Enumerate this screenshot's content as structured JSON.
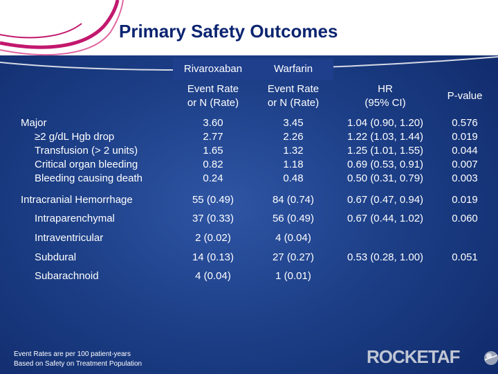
{
  "title": "Primary Safety Outcomes",
  "headers": {
    "rivaroxaban": "Rivaroxaban",
    "warfarin": "Warfarin",
    "event_rate_riv": "Event Rate\nor N (Rate)",
    "event_rate_war": "Event Rate\nor N (Rate)",
    "hr": "HR\n(95% CI)",
    "pvalue": "P-value"
  },
  "major": {
    "label": "Major",
    "sub_labels": "≥2 g/dL Hgb drop\nTransfusion (> 2 units)\nCritical organ bleeding\nBleeding causing death",
    "riv": "3.60\n2.77\n1.65\n0.82\n0.24",
    "war": "3.45\n2.26\n1.32\n1.18\n0.48",
    "hr": "1.04 (0.90, 1.20)\n1.22 (1.03, 1.44)\n1.25 (1.01, 1.55)\n0.69 (0.53, 0.91)\n0.50 (0.31, 0.79)",
    "p": "0.576\n0.019\n0.044\n0.007\n0.003"
  },
  "rows": [
    {
      "label": "Intracranial Hemorrhage",
      "riv": "55 (0.49)",
      "war": "84 (0.74)",
      "hr": "0.67 (0.47, 0.94)",
      "p": "0.019"
    },
    {
      "label": "Intraparenchymal",
      "riv": "37 (0.33)",
      "war": "56 (0.49)",
      "hr": "0.67 (0.44, 1.02)",
      "p": "0.060"
    },
    {
      "label": "Intraventricular",
      "riv": "2 (0.02)",
      "war": "4 (0.04)",
      "hr": "",
      "p": ""
    },
    {
      "label": "Subdural",
      "riv": "14 (0.13)",
      "war": "27 (0.27)",
      "hr": "0.53 (0.28, 1.00)",
      "p": "0.051"
    },
    {
      "label": "Subarachnoid",
      "riv": "4 (0.04)",
      "war": "1 (0.01)",
      "hr": "",
      "p": ""
    }
  ],
  "footnote": "Event Rates are per 100 patient-years\nBased on Safety on Treatment Population",
  "logo": {
    "word": "ROCKET",
    "suffix": "AF",
    "icon": "globe-icon"
  },
  "colors": {
    "title": "#0c2470",
    "background": "#1c3e86",
    "swoosh": "#c2186e"
  }
}
